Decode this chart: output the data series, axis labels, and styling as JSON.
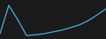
{
  "x": [
    0,
    1,
    2,
    3,
    4,
    5,
    6,
    7,
    8,
    9,
    10,
    11,
    12
  ],
  "y": [
    1.5,
    9.5,
    5.5,
    1.0,
    1.2,
    1.5,
    2.0,
    2.5,
    3.2,
    4.0,
    5.2,
    6.8,
    8.5
  ],
  "line_color": "#45a0d0",
  "line_width": 1.0,
  "bg_color": "#1a1a1a",
  "ylim": [
    0,
    11
  ],
  "xlim": [
    0,
    12
  ]
}
